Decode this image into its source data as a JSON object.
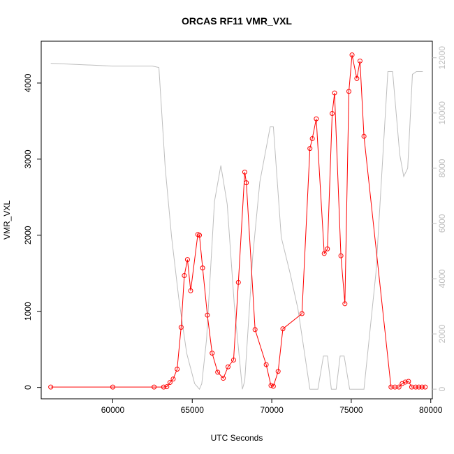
{
  "chart_data": {
    "type": "line",
    "title": "ORCAS RF11 VMR_VXL",
    "xlabel": "UTC Seconds",
    "ylabel": "VMR_VXL",
    "xlim": [
      55500,
      80100
    ],
    "ylim": [
      -150,
      4550
    ],
    "y2lim": [
      -350,
      12600
    ],
    "x_ticks": [
      60000,
      65000,
      70000,
      75000,
      80000
    ],
    "x_tick_labels": [
      "60000",
      "65000",
      "70000",
      "75000",
      "80000"
    ],
    "y_ticks": [
      0,
      1000,
      2000,
      3000,
      4000
    ],
    "y_tick_labels": [
      "0",
      "1000",
      "2000",
      "3000",
      "4000"
    ],
    "y2_ticks": [
      0,
      2000,
      4000,
      6000,
      8000,
      10000,
      12000
    ],
    "y2_tick_labels": [
      "0",
      "2000",
      "4000",
      "6000",
      "8000",
      "10000",
      "12000"
    ],
    "series": [
      {
        "axis": "left",
        "color": "#ff0000",
        "marker": "open-circle",
        "x": [
          56100,
          60000,
          62600,
          63200,
          63400,
          63600,
          63800,
          64050,
          64300,
          64500,
          64700,
          64900,
          65350,
          65450,
          65650,
          65950,
          66250,
          66600,
          66950,
          67250,
          67600,
          67900,
          68300,
          68400,
          68950,
          69650,
          69950,
          70100,
          70400,
          70700,
          71900,
          72400,
          72550,
          72800,
          73300,
          73500,
          73800,
          73950,
          74350,
          74600,
          74850,
          75050,
          75350,
          75550,
          75800,
          77500,
          77750,
          78000,
          78200,
          78400,
          78600,
          78800,
          79050,
          79250,
          79450,
          79650
        ],
        "y": [
          5,
          5,
          5,
          5,
          10,
          65,
          110,
          240,
          790,
          1470,
          1680,
          1270,
          2010,
          2000,
          1570,
          950,
          450,
          200,
          120,
          270,
          360,
          1380,
          2830,
          2690,
          760,
          300,
          25,
          15,
          210,
          770,
          970,
          3140,
          3270,
          3530,
          1760,
          1820,
          3600,
          3870,
          1730,
          1100,
          3890,
          4370,
          4060,
          4290,
          3300,
          5,
          5,
          5,
          50,
          70,
          80,
          5,
          5,
          5,
          5,
          5
        ]
      },
      {
        "axis": "right",
        "color": "#bebebe",
        "marker": "none",
        "x": [
          56100,
          60000,
          62500,
          62900,
          63300,
          63700,
          64150,
          64650,
          65150,
          65450,
          65600,
          65900,
          66400,
          66800,
          67200,
          67650,
          68150,
          68300,
          68800,
          69250,
          69900,
          70100,
          70600,
          71150,
          71650,
          72400,
          72900,
          73250,
          73500,
          73750,
          74050,
          74300,
          74550,
          74900,
          75650,
          75800,
          76550,
          77300,
          77600,
          78050,
          78300,
          78550,
          78850,
          79100,
          79500
        ],
        "y": [
          11800,
          11700,
          11700,
          11650,
          8000,
          5500,
          3300,
          1300,
          200,
          0,
          200,
          1800,
          6800,
          8100,
          6700,
          3000,
          0,
          300,
          4800,
          7500,
          9500,
          9500,
          5500,
          4200,
          2900,
          0,
          0,
          1200,
          1200,
          0,
          0,
          1200,
          1200,
          0,
          0,
          0,
          4200,
          11500,
          11500,
          8500,
          7700,
          8000,
          11400,
          11500,
          11500
        ]
      }
    ],
    "grid": false,
    "legend": "none"
  }
}
